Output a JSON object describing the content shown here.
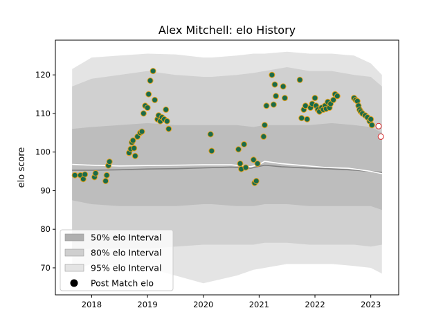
{
  "chart_data": {
    "type": "scatter",
    "title": "Alex Mitchell: elo History",
    "xlabel": "",
    "ylabel": "elo score",
    "xlim": [
      2017.35,
      2023.5
    ],
    "ylim": [
      63,
      129
    ],
    "x_ticks": [
      2018,
      2019,
      2020,
      2021,
      2022,
      2023
    ],
    "y_ticks": [
      70,
      80,
      90,
      100,
      110,
      120
    ],
    "legend_position": "lower-left",
    "legend": [
      {
        "label": "50% elo Interval",
        "kind": "patch",
        "color": "#b0b0b0"
      },
      {
        "label": "80% elo Interval",
        "kind": "patch",
        "color": "#cfcfcf"
      },
      {
        "label": "95% elo Interval",
        "kind": "patch",
        "color": "#e4e4e4"
      },
      {
        "label": "Post Match elo",
        "kind": "marker",
        "color": "#000000"
      }
    ],
    "colors": {
      "point_fill": "#1a6b4a",
      "point_edge": "#e6a11a",
      "upcoming_edge": "#d62728",
      "mean_line": "#ffffff",
      "median_line": "#808080"
    },
    "bands": {
      "x": [
        2017.65,
        2018.0,
        2018.5,
        2019.0,
        2019.5,
        2020.0,
        2020.15,
        2020.6,
        2020.9,
        2021.1,
        2021.5,
        2021.9,
        2022.3,
        2022.7,
        2023.0,
        2023.2
      ],
      "p95_upper": [
        121.5,
        124.5,
        125,
        125.5,
        125.3,
        124.5,
        124.5,
        125,
        125.5,
        125.5,
        126,
        125.5,
        125.5,
        125,
        123,
        120
      ],
      "p80_upper": [
        117,
        119,
        120,
        121,
        120,
        119.5,
        119.5,
        120,
        120.5,
        121,
        122,
        121,
        121,
        120,
        119.5,
        117
      ],
      "p50_upper": [
        106,
        106.5,
        107,
        107.5,
        107,
        107,
        107,
        107,
        106.5,
        107,
        107,
        107,
        107.5,
        107,
        106.5,
        105
      ],
      "p50_lower": [
        87.5,
        86.5,
        86,
        86,
        86,
        86.5,
        86.5,
        86,
        86,
        86.5,
        86.5,
        86,
        86,
        86,
        86,
        85
      ],
      "p80_lower": [
        74.5,
        75,
        75,
        75,
        75.5,
        76,
        76,
        76,
        76,
        76.5,
        76.5,
        76,
        76,
        76,
        75.5,
        76
      ],
      "p95_lower": [
        69.5,
        71,
        70.5,
        70,
        68,
        66,
        66.5,
        68,
        69.5,
        70,
        71,
        71,
        71,
        70.5,
        70,
        68.5
      ]
    },
    "mean_line": {
      "x": [
        2017.65,
        2018.0,
        2018.5,
        2019.0,
        2019.5,
        2020.0,
        2020.5,
        2020.85,
        2021.0,
        2021.1,
        2021.4,
        2021.8,
        2022.2,
        2022.6,
        2023.0,
        2023.2
      ],
      "y": [
        96.8,
        96.6,
        96.4,
        96.5,
        96.6,
        96.7,
        96.7,
        96.2,
        96.8,
        97.6,
        97.0,
        96.5,
        96.0,
        95.8,
        95.0,
        94.4
      ]
    },
    "median_line": {
      "x": [
        2017.65,
        2018.0,
        2018.5,
        2019.0,
        2019.5,
        2020.0,
        2020.5,
        2020.85,
        2021.0,
        2021.1,
        2021.4,
        2021.8,
        2022.2,
        2022.6,
        2023.0,
        2023.2
      ],
      "y": [
        95.3,
        95.3,
        95.4,
        95.6,
        95.7,
        95.9,
        96.1,
        95.8,
        96.3,
        96.6,
        96.2,
        95.9,
        95.7,
        95.4,
        95.0,
        94.7
      ]
    },
    "series": [
      {
        "name": "Post Match elo",
        "x": [
          2017.7,
          2017.8,
          2017.85,
          2017.88,
          2018.05,
          2018.07,
          2018.25,
          2018.27,
          2018.3,
          2018.32,
          2018.67,
          2018.7,
          2018.72,
          2018.74,
          2018.76,
          2018.78,
          2018.82,
          2018.87,
          2018.9,
          2018.93,
          2018.96,
          2019.0,
          2019.02,
          2019.05,
          2019.1,
          2019.13,
          2019.18,
          2019.2,
          2019.23,
          2019.26,
          2019.3,
          2019.33,
          2019.35,
          2019.38,
          2020.13,
          2020.15,
          2020.63,
          2020.66,
          2020.68,
          2020.73,
          2020.76,
          2020.9,
          2020.92,
          2020.95,
          2020.97,
          2021.08,
          2021.1,
          2021.13,
          2021.23,
          2021.26,
          2021.28,
          2021.3,
          2021.43,
          2021.46,
          2021.73,
          2021.76,
          2021.8,
          2021.83,
          2021.86,
          2021.92,
          2021.95,
          2022.0,
          2022.02,
          2022.05,
          2022.08,
          2022.12,
          2022.15,
          2022.18,
          2022.2,
          2022.23,
          2022.26,
          2022.28,
          2022.33,
          2022.36,
          2022.4,
          2022.7,
          2022.73,
          2022.76,
          2022.78,
          2022.8,
          2022.82,
          2022.85,
          2022.9,
          2022.94,
          2022.98,
          2023.0,
          2023.02
        ],
        "y": [
          94,
          94,
          93,
          94.2,
          93.5,
          94.5,
          92.5,
          94,
          96.5,
          97.5,
          99.8,
          100.8,
          102.5,
          103,
          101,
          99,
          104,
          105,
          105.3,
          110,
          112,
          111.5,
          115,
          118.5,
          121,
          113.5,
          108.5,
          109.5,
          108,
          109,
          108.5,
          111,
          108,
          106,
          104.6,
          100.3,
          100.7,
          97,
          95.6,
          102,
          96,
          98,
          92,
          92.5,
          97,
          104,
          107,
          112,
          120,
          112.3,
          117.5,
          114.5,
          117,
          114,
          118.7,
          108.8,
          111,
          112,
          108.5,
          111.5,
          112.5,
          114,
          112,
          111,
          110.5,
          111.5,
          111,
          112,
          111.2,
          113,
          111.5,
          112.5,
          113.5,
          115,
          114.5,
          114,
          113.5,
          113.2,
          112,
          111,
          110.5,
          110,
          109.5,
          109,
          108,
          108.5,
          107
        ]
      },
      {
        "name": "upcoming",
        "x": [
          2023.14,
          2023.18
        ],
        "y": [
          106.7,
          104
        ]
      }
    ]
  }
}
